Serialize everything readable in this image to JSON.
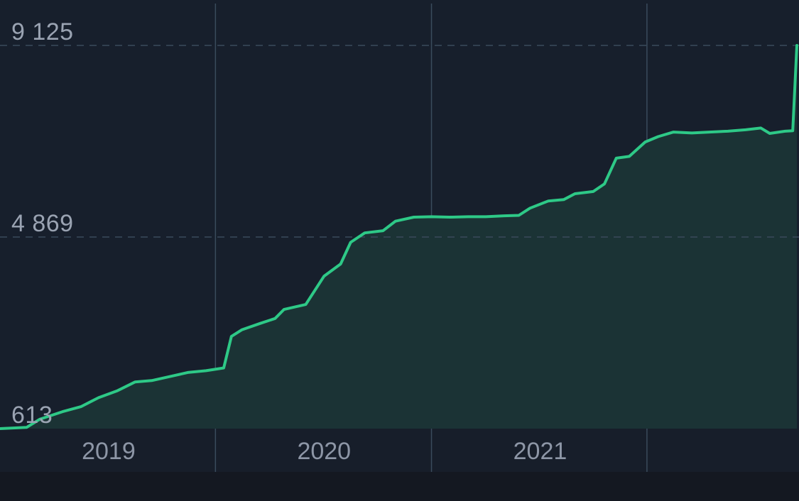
{
  "colors": {
    "page_background": "#141821",
    "plot_background": "#171f2c",
    "axis_band": "#171e2a",
    "line": "#2ec987",
    "area_fill": "#1b3335",
    "gridline": "#3a4b5c",
    "tick_label": "#9aa3b2"
  },
  "chart_data": {
    "type": "area",
    "title": "",
    "xlabel": "",
    "ylabel": "",
    "ylim": [
      613,
      9125
    ],
    "xlim": [
      "2018-07-01",
      "2022-03-12"
    ],
    "y_ticks": [
      {
        "value": 613,
        "label": "613"
      },
      {
        "value": 4869,
        "label": "4 869"
      },
      {
        "value": 9125,
        "label": "9 125"
      }
    ],
    "year_ticks": [
      {
        "label": "2019",
        "date": "2019-01-01"
      },
      {
        "label": "2020",
        "date": "2020-01-01"
      },
      {
        "label": "2021",
        "date": "2021-01-01"
      }
    ],
    "year_boundaries": [
      "2019-07-01",
      "2020-07-01",
      "2021-07-01"
    ],
    "grid": {
      "horizontal_dashed": true,
      "vertical_solid": true
    },
    "series": [
      {
        "points": [
          [
            "2018-07-01",
            613
          ],
          [
            "2018-08-15",
            640
          ],
          [
            "2018-09-06",
            820
          ],
          [
            "2018-10-15",
            990
          ],
          [
            "2018-11-15",
            1100
          ],
          [
            "2018-12-15",
            1300
          ],
          [
            "2019-01-15",
            1450
          ],
          [
            "2019-02-15",
            1650
          ],
          [
            "2019-03-15",
            1680
          ],
          [
            "2019-04-15",
            1770
          ],
          [
            "2019-05-15",
            1860
          ],
          [
            "2019-06-15",
            1900
          ],
          [
            "2019-07-15",
            1960
          ],
          [
            "2019-07-28",
            2660
          ],
          [
            "2019-08-15",
            2810
          ],
          [
            "2019-09-15",
            2950
          ],
          [
            "2019-10-10",
            3060
          ],
          [
            "2019-10-25",
            3260
          ],
          [
            "2019-12-01",
            3370
          ],
          [
            "2020-01-01",
            4000
          ],
          [
            "2020-01-29",
            4270
          ],
          [
            "2020-02-15",
            4750
          ],
          [
            "2020-03-10",
            4960
          ],
          [
            "2020-04-10",
            5010
          ],
          [
            "2020-05-01",
            5220
          ],
          [
            "2020-06-01",
            5310
          ],
          [
            "2020-07-01",
            5320
          ],
          [
            "2020-08-01",
            5310
          ],
          [
            "2020-09-01",
            5320
          ],
          [
            "2020-10-01",
            5320
          ],
          [
            "2020-11-01",
            5340
          ],
          [
            "2020-11-26",
            5350
          ],
          [
            "2020-12-15",
            5510
          ],
          [
            "2021-01-15",
            5670
          ],
          [
            "2021-02-10",
            5700
          ],
          [
            "2021-03-01",
            5830
          ],
          [
            "2021-04-01",
            5880
          ],
          [
            "2021-04-20",
            6050
          ],
          [
            "2021-05-10",
            6620
          ],
          [
            "2021-06-01",
            6660
          ],
          [
            "2021-06-28",
            6980
          ],
          [
            "2021-07-20",
            7100
          ],
          [
            "2021-08-15",
            7200
          ],
          [
            "2021-09-15",
            7180
          ],
          [
            "2021-10-15",
            7200
          ],
          [
            "2021-11-15",
            7220
          ],
          [
            "2021-12-15",
            7250
          ],
          [
            "2022-01-10",
            7290
          ],
          [
            "2022-01-25",
            7170
          ],
          [
            "2022-02-20",
            7220
          ],
          [
            "2022-03-05",
            7230
          ],
          [
            "2022-03-12",
            9125
          ]
        ]
      }
    ]
  }
}
